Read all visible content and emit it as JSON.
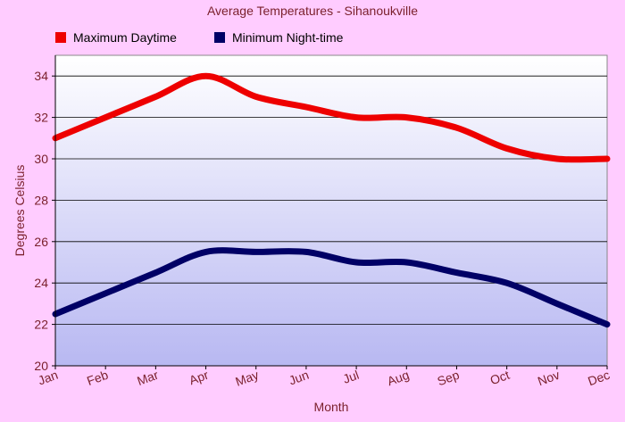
{
  "chart_data": {
    "type": "line",
    "title": "Average Temperatures - Sihanoukville",
    "xlabel": "Month",
    "ylabel": "Degrees Celsius",
    "categories": [
      "Jan",
      "Feb",
      "Mar",
      "Apr",
      "May",
      "Jun",
      "Jul",
      "Aug",
      "Sep",
      "Oct",
      "Nov",
      "Dec"
    ],
    "ylim": [
      20,
      35
    ],
    "yticks": [
      20,
      22,
      24,
      26,
      28,
      30,
      32,
      34
    ],
    "grid": true,
    "legend_position": "top-left",
    "series": [
      {
        "name": "Maximum Daytime",
        "color": "#ee0000",
        "values": [
          31,
          32,
          33,
          34,
          33,
          32.5,
          32,
          32,
          31.5,
          30.5,
          30,
          30
        ]
      },
      {
        "name": "Minimum Night-time",
        "color": "#000066",
        "values": [
          22.5,
          23.5,
          24.5,
          25.5,
          25.5,
          25.5,
          25,
          25,
          24.5,
          24,
          23,
          22
        ]
      }
    ]
  }
}
